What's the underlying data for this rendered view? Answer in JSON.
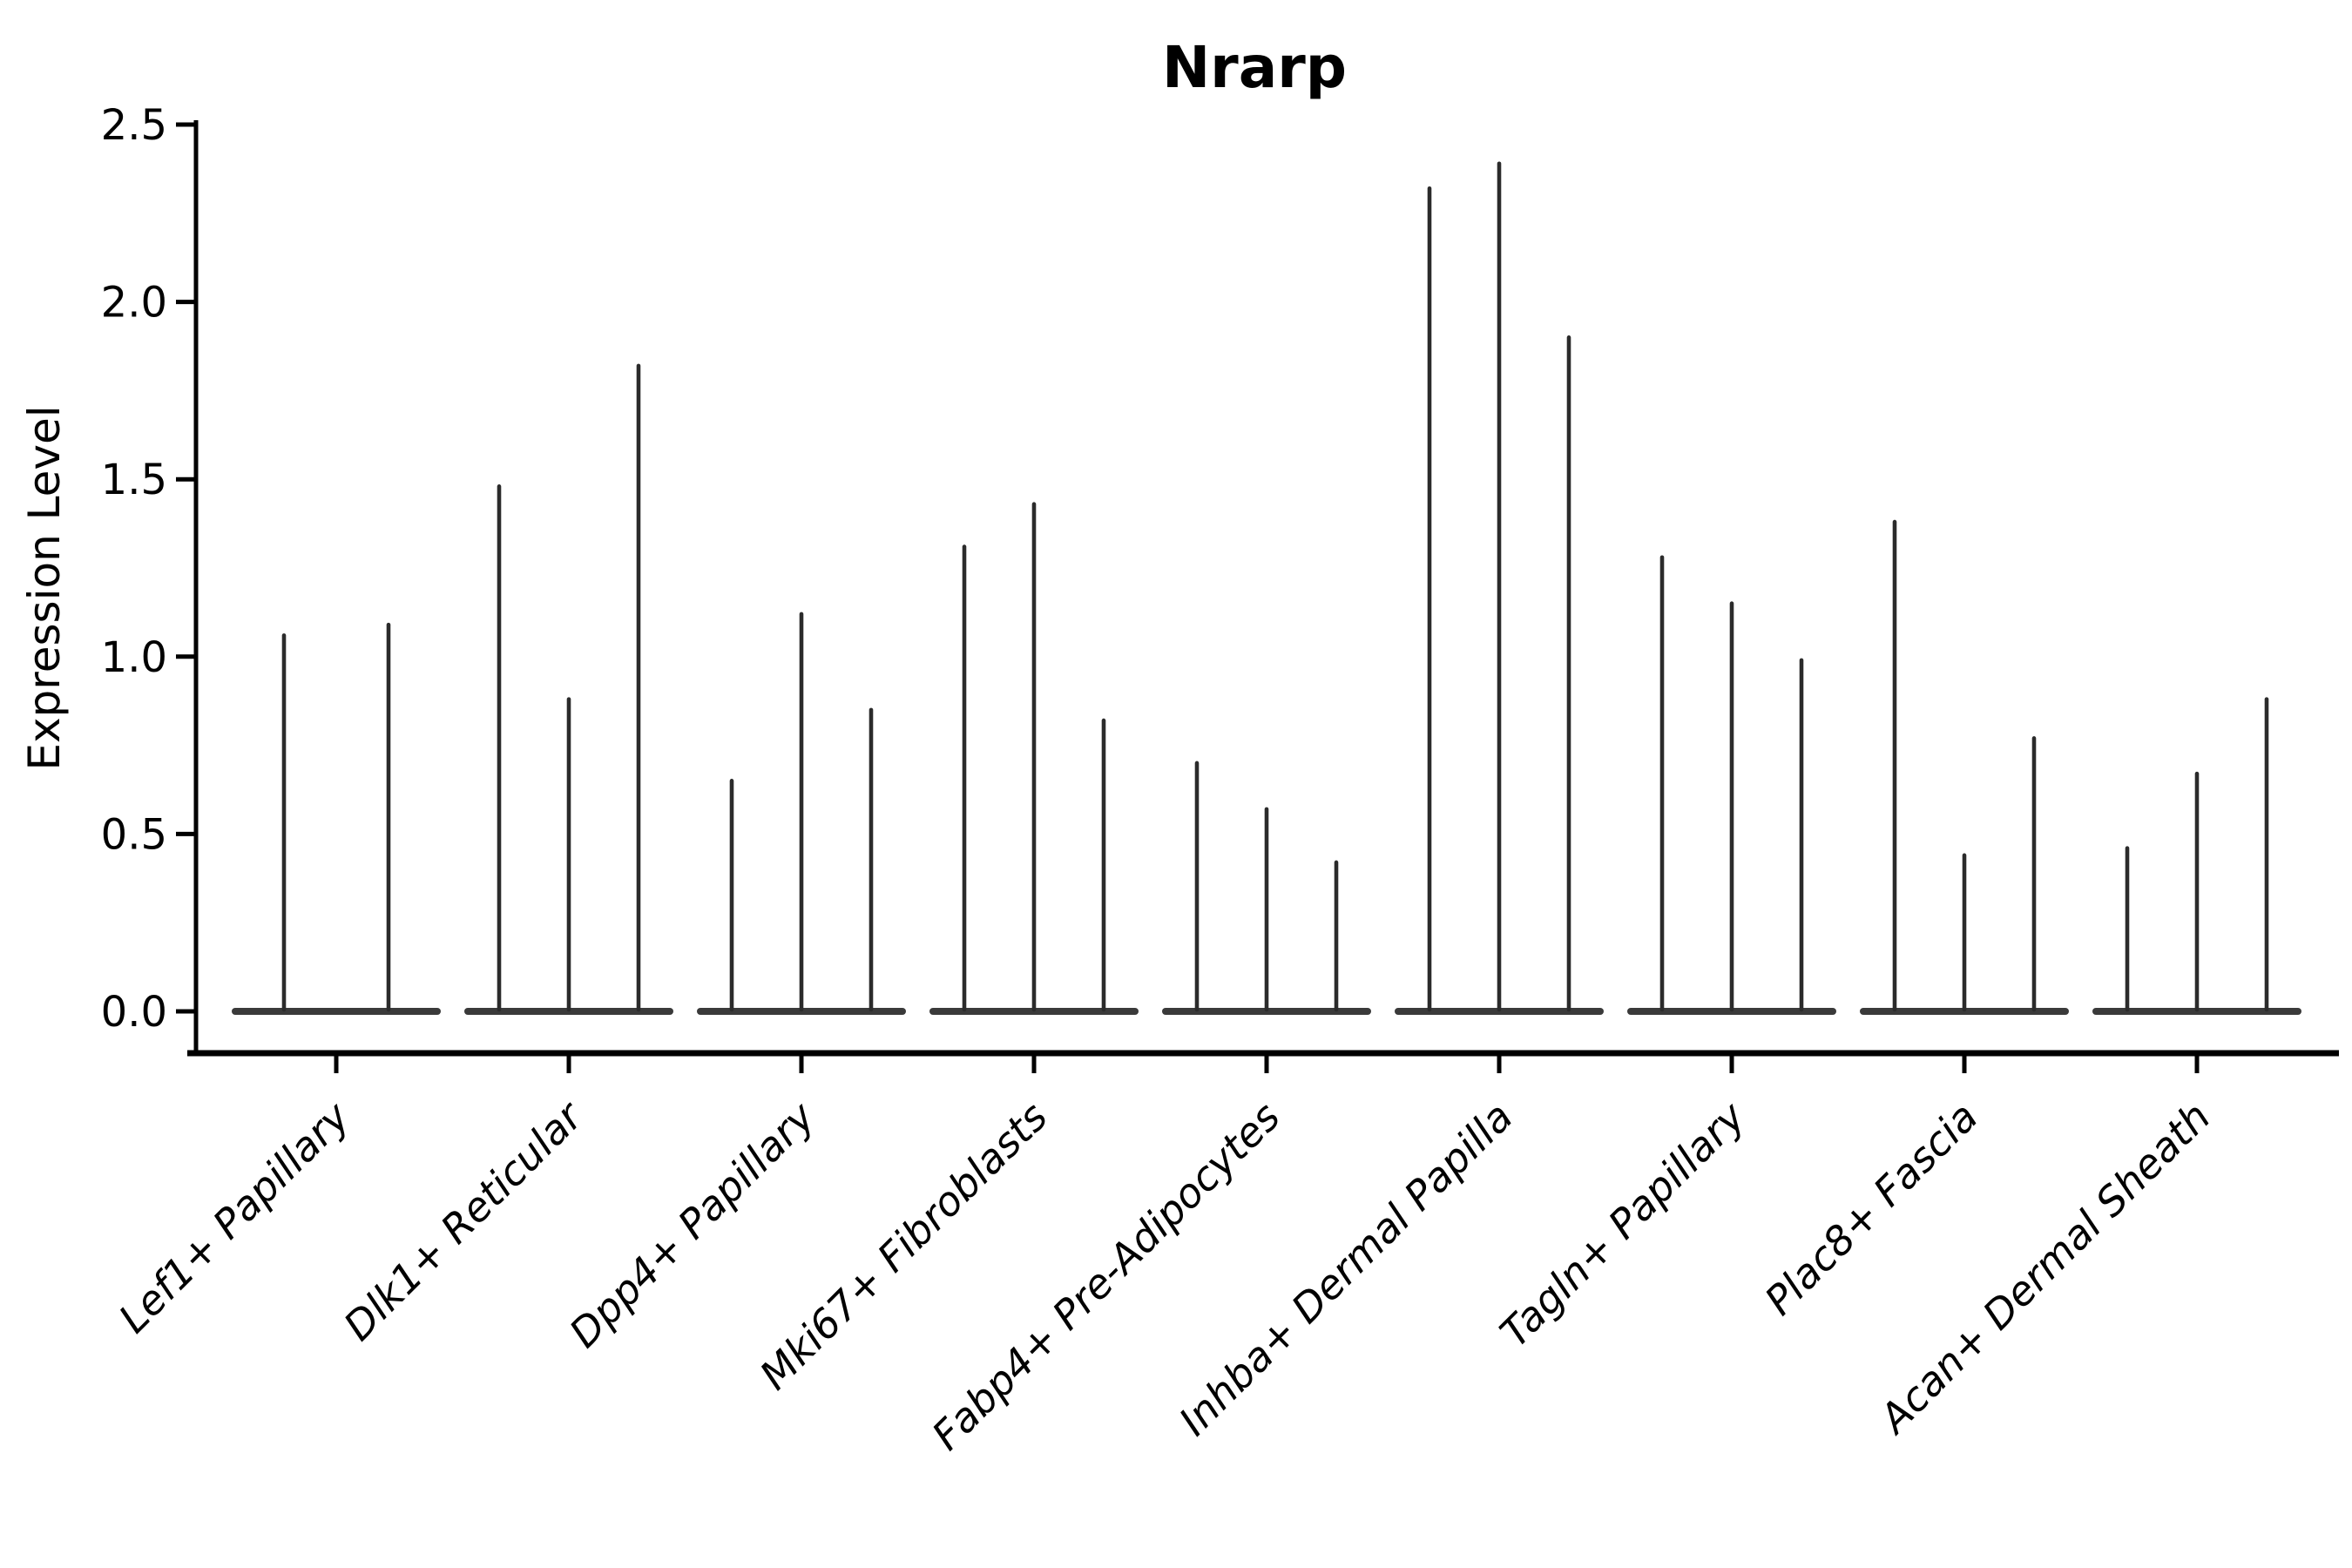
{
  "chart_data": {
    "type": "violin",
    "title": "Nrarp",
    "xlabel": "",
    "ylabel": "Expression Level",
    "ylim": [
      0,
      2.5
    ],
    "ytick_values": [
      0.0,
      0.5,
      1.0,
      1.5,
      2.0,
      2.5
    ],
    "ytick_labels": [
      "0.0",
      "0.5",
      "1.0",
      "1.5",
      "2.0",
      "2.5"
    ],
    "grid": false,
    "legend": false,
    "categories": [
      "Lef1+ Papillary",
      "Dlk1+ Reticular",
      "Dpp4+ Papillary",
      "Mki67+ Fibroblasts",
      "Fabp4+ Pre-Adipocytes",
      "Inhba+ Dermal Papilla",
      "Tagln+ Papillary",
      "Plac8+ Fascia",
      "Acan+ Dermal Sheath"
    ],
    "groups": [
      {
        "label": "Lef1+ Papillary",
        "max_expression_per_violin": [
          1.06,
          1.09
        ]
      },
      {
        "label": "Dlk1+ Reticular",
        "max_expression_per_violin": [
          1.48,
          0.88,
          1.82
        ]
      },
      {
        "label": "Dpp4+ Papillary",
        "max_expression_per_violin": [
          0.65,
          1.12,
          0.85
        ]
      },
      {
        "label": "Mki67+ Fibroblasts",
        "max_expression_per_violin": [
          1.31,
          1.43,
          0.82
        ]
      },
      {
        "label": "Fabp4+ Pre-Adipocytes",
        "max_expression_per_violin": [
          0.7,
          0.57,
          0.42
        ]
      },
      {
        "label": "Inhba+ Dermal Papilla",
        "max_expression_per_violin": [
          2.32,
          2.39,
          1.9
        ]
      },
      {
        "label": "Tagln+ Papillary",
        "max_expression_per_violin": [
          1.28,
          1.15,
          0.99
        ]
      },
      {
        "label": "Plac8+ Fascia",
        "max_expression_per_violin": [
          1.38,
          0.44,
          0.77
        ]
      },
      {
        "label": "Acan+ Dermal Sheath",
        "max_expression_per_violin": [
          0.46,
          0.67,
          0.88
        ]
      }
    ],
    "colors": {
      "axis_spine": "#000000",
      "tick": "#000000",
      "text": "#000000",
      "violin_spike": "#2b2b2b",
      "violin_body": "#3a3a3a",
      "background": "#ffffff"
    }
  }
}
